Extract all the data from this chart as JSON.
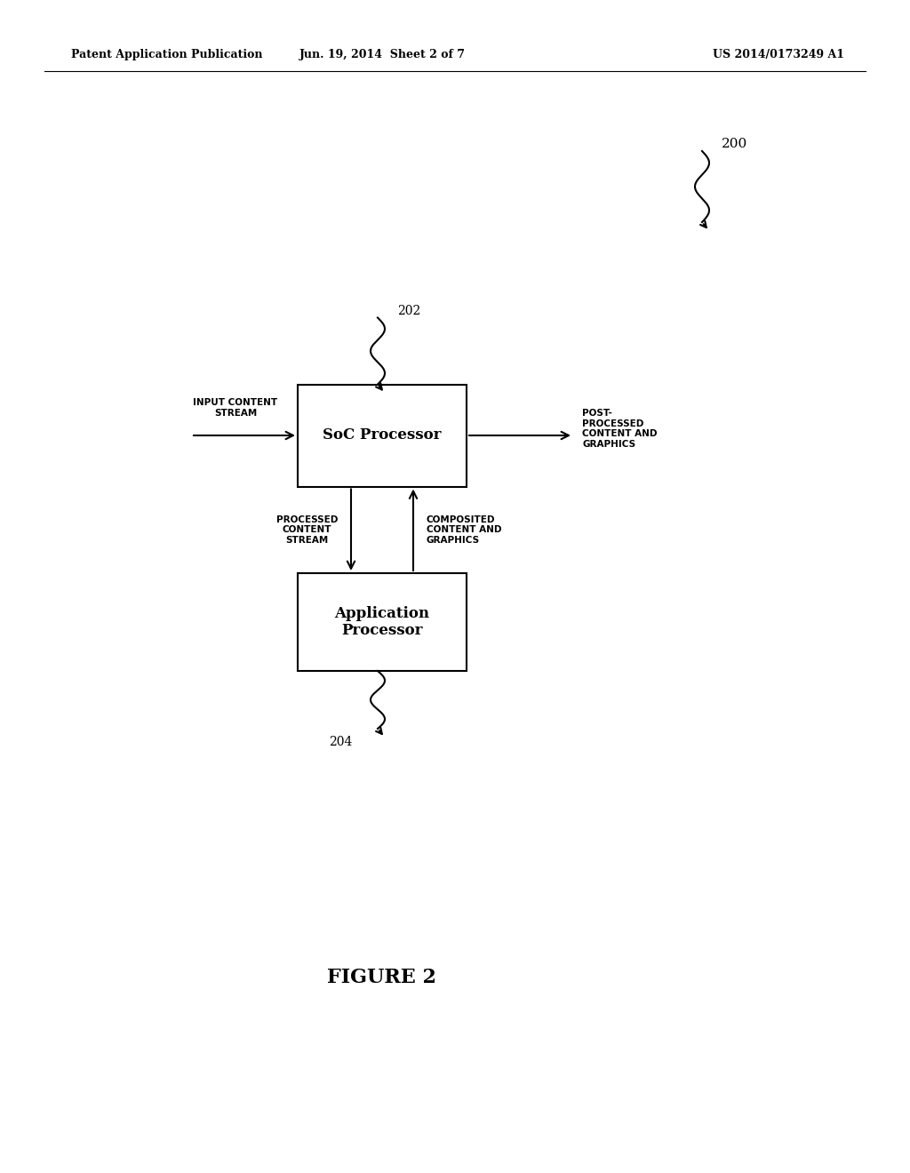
{
  "bg_color": "#ffffff",
  "header_left": "Patent Application Publication",
  "header_mid": "Jun. 19, 2014  Sheet 2 of 7",
  "header_right": "US 2014/0173249 A1",
  "figure_label": "FIGURE 2",
  "ref_200": "200",
  "ref_202": "202",
  "ref_204": "204",
  "soc_label": "SoC Processor",
  "app_label": "Application\nProcessor",
  "input_label": "INPUT CONTENT\nSTREAM",
  "output_label": "POST-\nPROCESSED\nCONTENT AND\nGRAPHICS",
  "processed_label": "PROCESSED\nCONTENT\nSTREAM",
  "composited_label": "COMPOSITED\nCONTENT AND\nGRAPHICS",
  "line_color": "#000000",
  "text_color": "#000000",
  "font_size_header": 9,
  "font_size_labels": 7.5,
  "font_size_box": 12,
  "font_size_figure": 16
}
